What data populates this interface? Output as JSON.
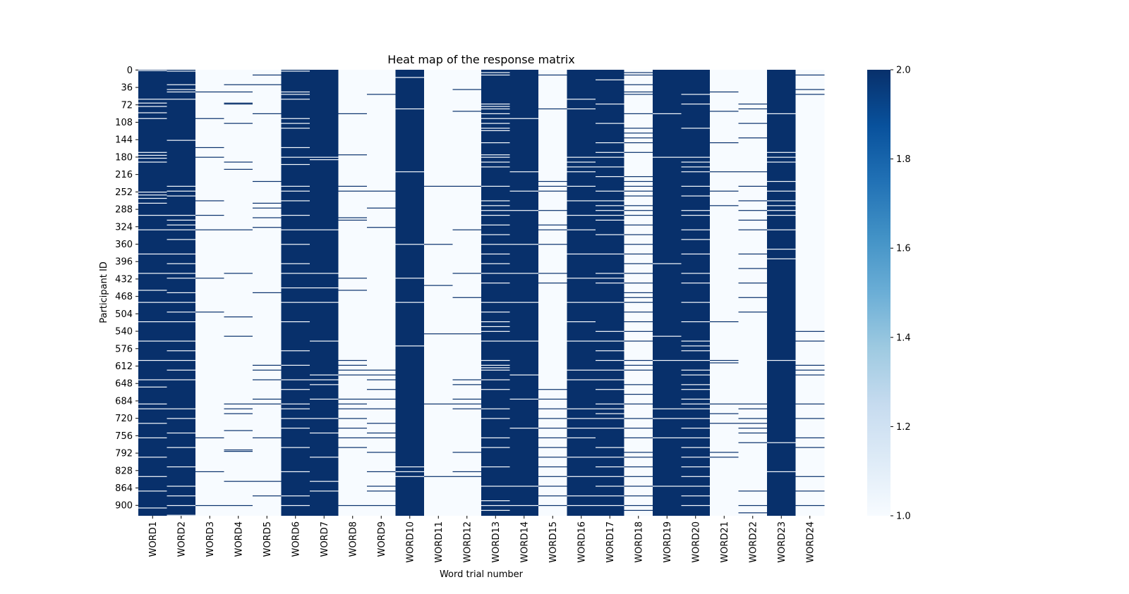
{
  "chart_data": {
    "type": "heatmap",
    "title": "Heat map of the response matrix",
    "xlabel": "Word trial number",
    "ylabel": "Participant ID",
    "columns": [
      "WORD1",
      "WORD2",
      "WORD3",
      "WORD4",
      "WORD5",
      "WORD6",
      "WORD7",
      "WORD8",
      "WORD9",
      "WORD10",
      "WORD11",
      "WORD12",
      "WORD13",
      "WORD14",
      "WORD15",
      "WORD16",
      "WORD17",
      "WORD18",
      "WORD19",
      "WORD20",
      "WORD21",
      "WORD22",
      "WORD23",
      "WORD24"
    ],
    "y_ticks": [
      "0",
      "36",
      "72",
      "108",
      "144",
      "180",
      "216",
      "252",
      "288",
      "324",
      "360",
      "396",
      "432",
      "468",
      "504",
      "540",
      "576",
      "612",
      "648",
      "684",
      "720",
      "756",
      "792",
      "828",
      "864",
      "900"
    ],
    "n_rows": 922,
    "value_range": [
      1.0,
      2.0
    ],
    "colorbar_ticks": [
      "1.0",
      "1.2",
      "1.4",
      "1.6",
      "1.8",
      "2.0"
    ],
    "colormap": [
      "#f7fbff",
      "#deebf7",
      "#c6dbef",
      "#9ecae1",
      "#6baed6",
      "#4292c6",
      "#2171b5",
      "#08519c",
      "#08306b"
    ],
    "column_base_values": [
      2,
      2,
      1,
      1,
      1,
      2,
      2,
      1,
      1,
      2,
      1,
      1,
      2,
      2,
      1,
      2,
      2,
      1,
      2,
      2,
      1,
      1,
      2,
      1
    ],
    "exception_rows": [
      [
        1,
        60,
        68,
        75,
        88,
        100,
        170,
        176,
        182,
        190,
        252,
        258,
        265,
        275,
        300,
        330,
        380,
        420,
        455,
        480,
        520,
        560,
        600,
        640,
        655,
        690,
        700,
        730,
        760,
        800,
        840,
        870,
        905
      ],
      [
        2,
        30,
        40,
        45,
        60,
        145,
        240,
        250,
        260,
        300,
        310,
        320,
        330,
        350,
        380,
        400,
        420,
        430,
        460,
        480,
        500,
        520,
        560,
        580,
        600,
        620,
        640,
        700,
        720,
        750,
        780,
        820,
        860,
        880,
        900,
        920
      ],
      [
        45,
        100,
        160,
        180,
        270,
        300,
        330,
        430,
        500,
        760,
        830,
        900
      ],
      [
        30,
        45,
        68,
        70,
        110,
        190,
        205,
        330,
        420,
        510,
        550,
        690,
        700,
        710,
        745,
        785,
        788,
        850,
        900
      ],
      [
        10,
        30,
        90,
        230,
        275,
        285,
        305,
        325,
        460,
        610,
        620,
        640,
        680,
        690,
        760,
        850,
        880
      ],
      [
        2,
        45,
        50,
        60,
        100,
        110,
        120,
        160,
        180,
        195,
        240,
        250,
        270,
        300,
        330,
        360,
        400,
        420,
        450,
        480,
        520,
        580,
        610,
        640,
        660,
        690,
        700,
        720,
        740,
        780,
        830,
        880,
        900
      ],
      [
        180,
        185,
        330,
        420,
        450,
        480,
        560,
        630,
        640,
        650,
        680,
        720,
        750,
        800,
        850,
        870
      ],
      [
        90,
        175,
        240,
        250,
        305,
        310,
        430,
        455,
        600,
        610,
        620,
        630,
        680,
        690,
        700,
        720,
        740,
        760,
        780,
        900
      ],
      [
        50,
        250,
        285,
        325,
        620,
        630,
        640,
        660,
        680,
        700,
        730,
        750,
        760,
        790,
        830,
        860,
        870,
        900
      ],
      [
        15,
        80,
        210,
        360,
        430,
        480,
        570,
        820,
        830,
        840
      ],
      [
        240,
        360,
        445,
        545,
        690,
        840
      ],
      [
        40,
        85,
        240,
        330,
        420,
        470,
        545,
        640,
        650,
        680,
        690,
        700,
        790,
        830,
        840
      ],
      [
        5,
        10,
        70,
        75,
        80,
        90,
        100,
        110,
        120,
        125,
        150,
        175,
        180,
        190,
        200,
        240,
        270,
        280,
        290,
        300,
        320,
        340,
        360,
        380,
        400,
        420,
        440,
        480,
        500,
        520,
        530,
        540,
        560,
        600,
        610,
        615,
        620,
        640,
        660,
        700,
        720,
        760,
        780,
        820,
        860,
        890,
        900,
        910
      ],
      [
        100,
        210,
        250,
        290,
        360,
        420,
        480,
        560,
        630,
        680,
        740,
        860,
        900
      ],
      [
        10,
        80,
        230,
        240,
        250,
        290,
        320,
        330,
        360,
        420,
        440,
        660,
        680,
        700,
        720,
        740,
        760,
        780,
        800,
        820,
        840,
        860,
        880,
        900
      ],
      [
        60,
        80,
        180,
        190,
        200,
        210,
        240,
        270,
        300,
        330,
        380,
        430,
        480,
        520,
        560,
        620,
        640,
        700,
        720,
        740,
        760,
        800,
        840,
        880,
        900
      ],
      [
        20,
        70,
        110,
        150,
        170,
        180,
        200,
        220,
        250,
        270,
        280,
        290,
        300,
        310,
        340,
        380,
        420,
        430,
        440,
        480,
        540,
        560,
        580,
        600,
        620,
        640,
        660,
        690,
        700,
        710,
        720,
        740,
        780,
        800,
        820,
        840,
        860,
        880,
        900
      ],
      [
        5,
        10,
        30,
        45,
        50,
        90,
        120,
        130,
        140,
        150,
        170,
        220,
        230,
        240,
        250,
        260,
        280,
        290,
        300,
        320,
        340,
        360,
        380,
        400,
        420,
        440,
        460,
        470,
        480,
        500,
        520,
        540,
        560,
        600,
        610,
        620,
        650,
        670,
        690,
        720,
        740,
        760,
        790,
        800,
        820,
        840,
        860,
        880,
        900,
        910
      ],
      [
        90,
        180,
        400,
        550,
        600,
        700,
        720,
        760,
        860
      ],
      [
        50,
        70,
        120,
        180,
        190,
        200,
        210,
        240,
        260,
        290,
        300,
        330,
        350,
        380,
        420,
        440,
        480,
        520,
        560,
        570,
        580,
        600,
        620,
        630,
        650,
        660,
        680,
        690,
        700,
        720,
        740,
        760,
        780,
        800,
        820,
        840,
        860,
        880,
        900
      ],
      [
        45,
        85,
        150,
        210,
        250,
        280,
        520,
        600,
        605,
        690,
        710,
        730,
        790,
        800
      ],
      [
        70,
        80,
        110,
        140,
        210,
        240,
        270,
        290,
        310,
        330,
        380,
        410,
        440,
        470,
        500,
        690,
        700,
        720,
        730,
        740,
        750,
        770,
        870,
        900,
        915
      ],
      [
        90,
        170,
        180,
        190,
        230,
        250,
        270,
        280,
        290,
        300,
        330,
        370,
        390,
        600,
        770,
        830
      ],
      [
        10,
        40,
        50,
        540,
        560,
        610,
        620,
        630,
        690,
        720,
        760,
        780,
        840,
        870,
        900
      ]
    ]
  }
}
